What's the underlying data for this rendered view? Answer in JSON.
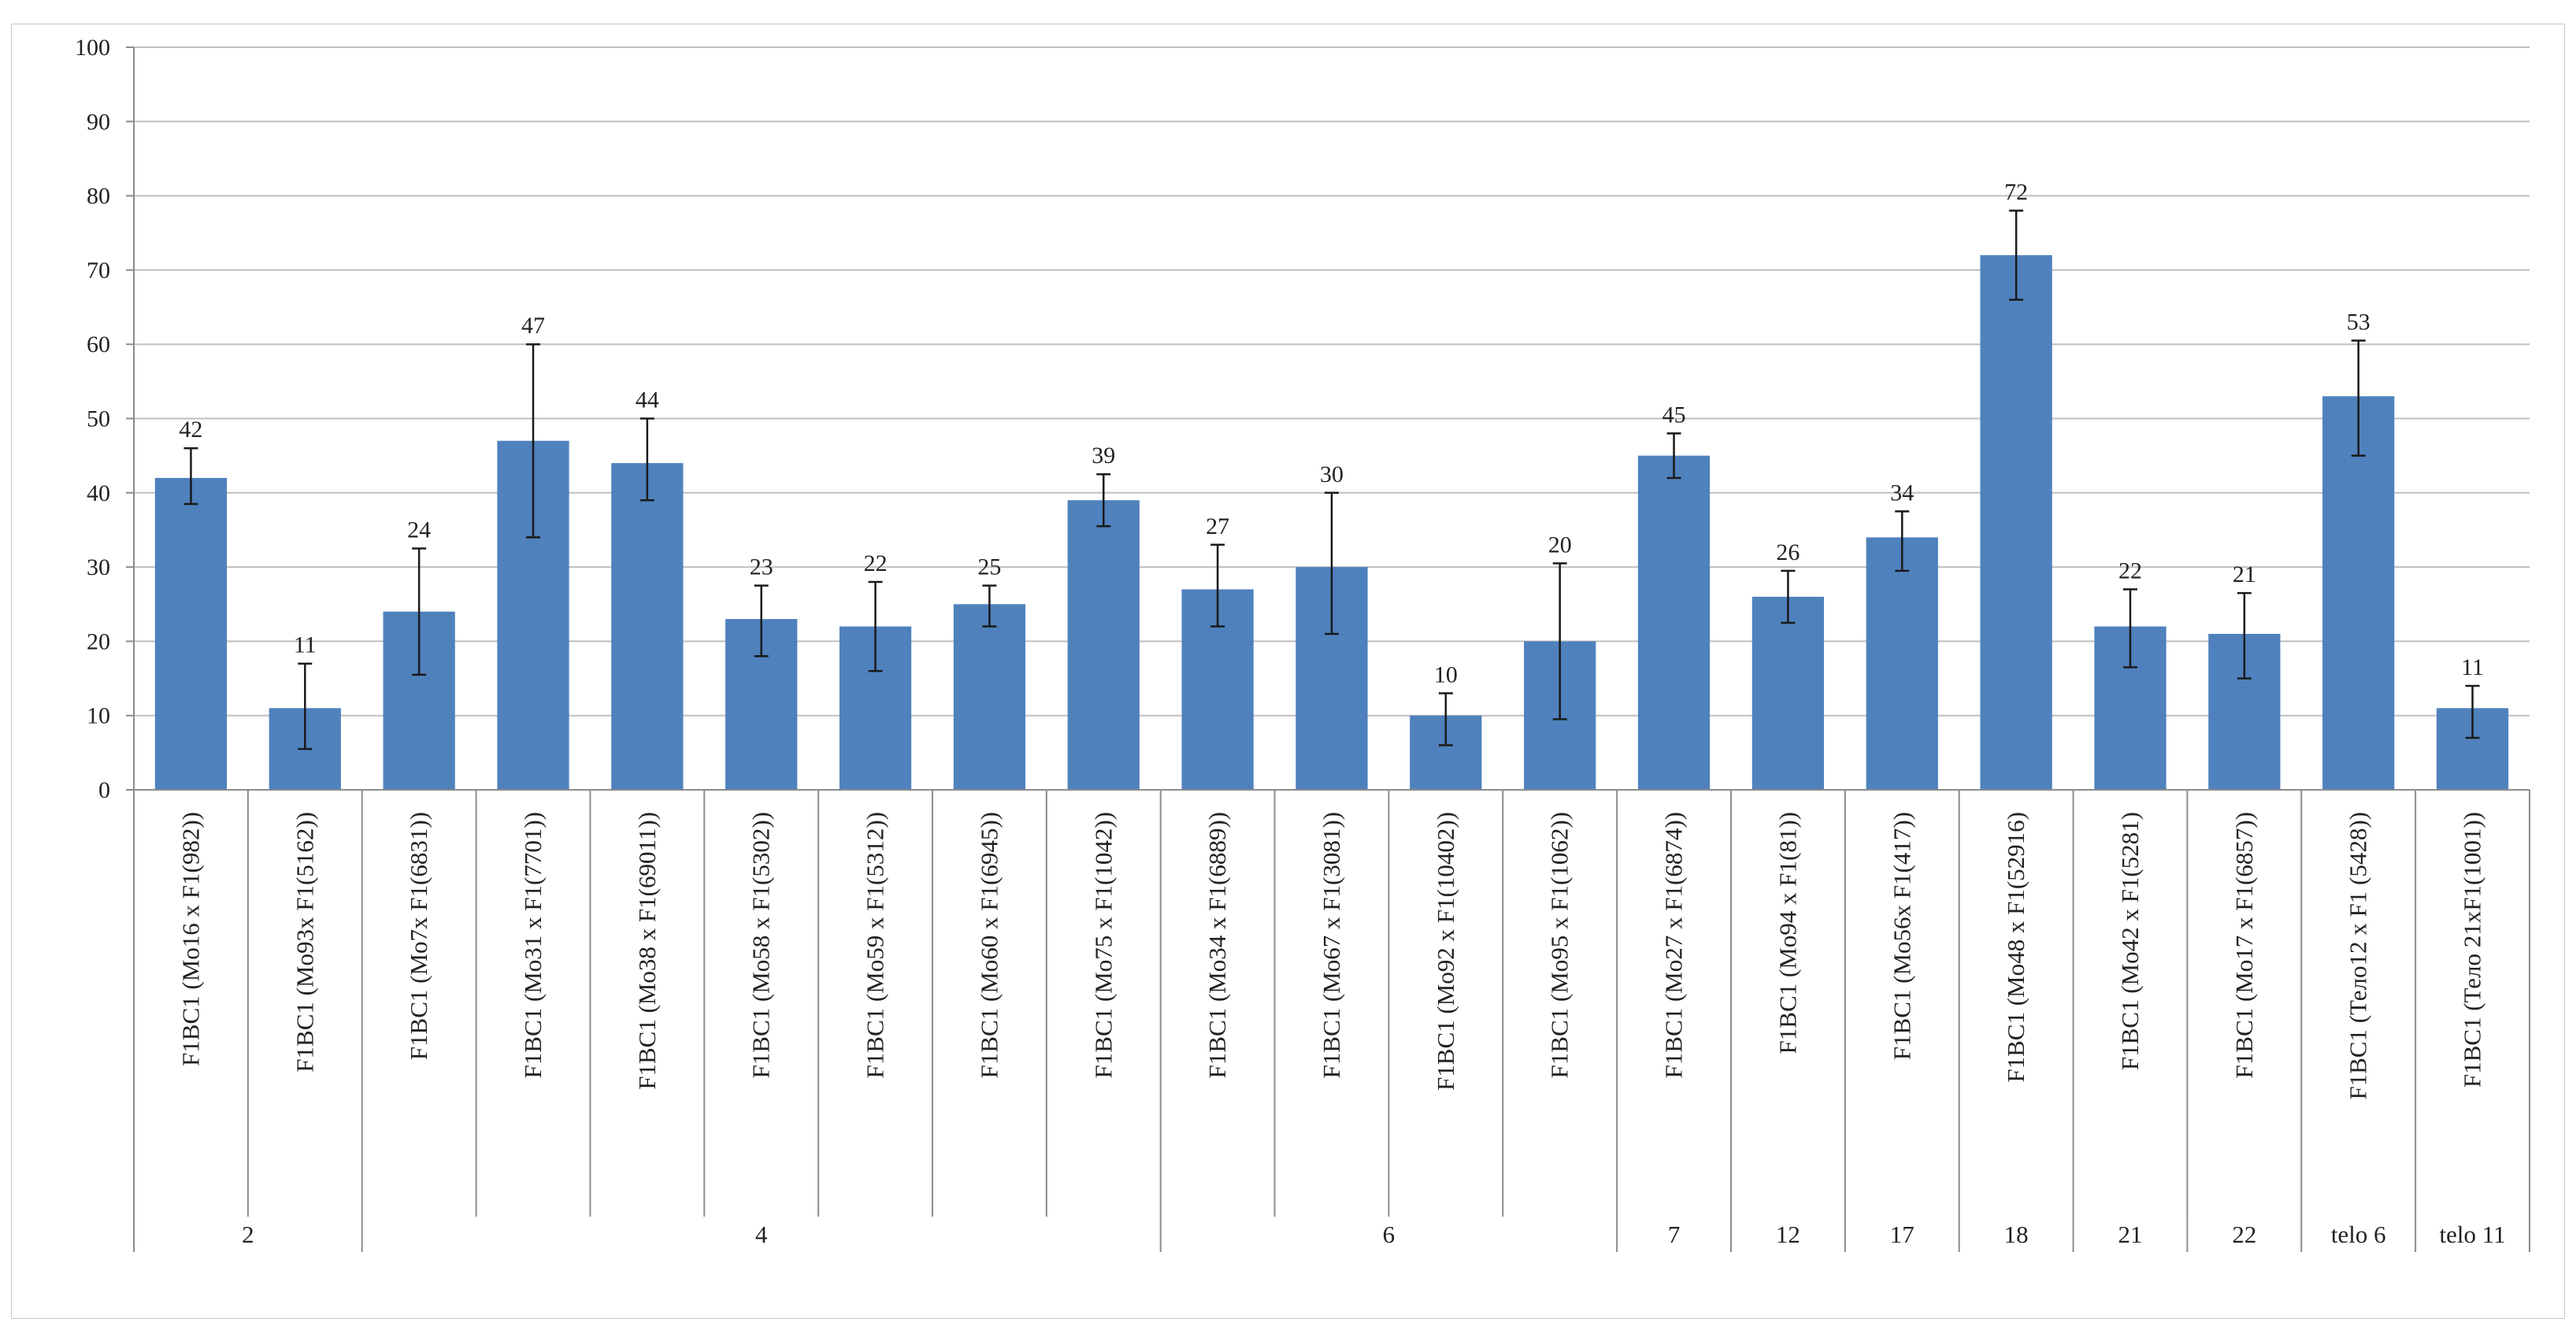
{
  "chart_data": {
    "type": "bar",
    "ylim": [
      0,
      100
    ],
    "yticks": [
      0,
      10,
      20,
      30,
      40,
      50,
      60,
      70,
      80,
      90,
      100
    ],
    "grid": true,
    "legend": "none",
    "bar_color": "#4f81bd",
    "grid_color": "#bfbfbf",
    "axis_color": "#8c8c8c",
    "error_color": "#1a1a1a",
    "categories": [
      "F1BC1 (Mo16 x F1(982))",
      "F1BC1 (Mo93x F1(5162))",
      "F1BC1 (Mo7x F1(6831))",
      "F1BC1 (Mo31 x F1(7701))",
      "F1BC1 (Mo38 x F1(69011))",
      "F1BC1 (Mo58 x F1(5302))",
      "F1BC1 (Mo59 x F1(5312))",
      "F1BC1 (Mo60 x F1(6945))",
      "F1BC1 (Mo75 x F1(1042))",
      "F1BC1 (Mo34 x F1(6889))",
      "F1BC1 (Mo67 x F1(3081))",
      "F1BC1 (Mo92 x F1(10402))",
      "F1BC1 (Mo95 x F1(1062))",
      "F1BC1 (Mo27 x F1(6874))",
      "F1BC1 (Mo94 x F1(81))",
      "F1BC1 (Mo56x F1(417))",
      "F1BC1 (Mo48 x F1(52916)",
      "F1BC1 (Mo42 x F1(5281)",
      "F1BC1 (Mo17 x F1(6857))",
      "F1BC1 (Тело12 x F1 (5428))",
      "F1BC1 (Тело 21xF1(1001))"
    ],
    "values": [
      42,
      11,
      24,
      47,
      44,
      23,
      22,
      25,
      39,
      27,
      30,
      10,
      20,
      45,
      26,
      34,
      72,
      22,
      21,
      53,
      11
    ],
    "data_labels": [
      "42",
      "11",
      "24",
      "47",
      "44",
      "23",
      "22",
      "25",
      "39",
      "27",
      "30",
      "10",
      "20",
      "45",
      "26",
      "34",
      "72",
      "22",
      "21",
      "53",
      "11"
    ],
    "error_low": [
      38.5,
      5.5,
      15.5,
      34,
      39,
      18,
      16,
      22,
      35.5,
      22,
      21,
      6,
      9.5,
      42,
      22.5,
      29.5,
      66,
      16.5,
      15,
      45,
      7
    ],
    "error_high": [
      46,
      17,
      32.5,
      60,
      50,
      27.5,
      28,
      27.5,
      42.5,
      33,
      40,
      13,
      30.5,
      48,
      29.5,
      37.5,
      78,
      27,
      26.5,
      60.5,
      14
    ],
    "groups": [
      {
        "label": "2",
        "start": 0,
        "count": 2
      },
      {
        "label": "4",
        "start": 2,
        "count": 7
      },
      {
        "label": "6",
        "start": 9,
        "count": 4
      },
      {
        "label": "7",
        "start": 13,
        "count": 1
      },
      {
        "label": "12",
        "start": 14,
        "count": 1
      },
      {
        "label": "17",
        "start": 15,
        "count": 1
      },
      {
        "label": "18",
        "start": 16,
        "count": 1
      },
      {
        "label": "21",
        "start": 17,
        "count": 1
      },
      {
        "label": "22",
        "start": 18,
        "count": 1
      },
      {
        "label": "telo 6",
        "start": 19,
        "count": 1
      },
      {
        "label": "telo 11",
        "start": 20,
        "count": 1
      }
    ]
  }
}
